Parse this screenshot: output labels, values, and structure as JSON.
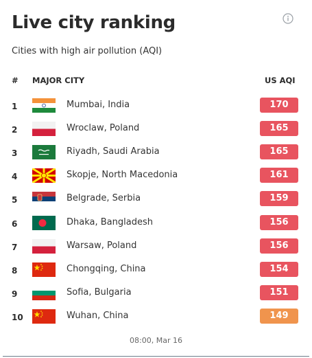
{
  "title": "Live city ranking",
  "subtitle": "Cities with high air pollution (AQI)",
  "header": {
    "rank": "#",
    "city": "MAJOR CITY",
    "aqi": "US AQI"
  },
  "rows": [
    {
      "rank": "1",
      "city": "Mumbai, India",
      "aqi": "170",
      "color": "#e8545f",
      "flag": "india-flag"
    },
    {
      "rank": "2",
      "city": "Wroclaw, Poland",
      "aqi": "165",
      "color": "#e8545f",
      "flag": "poland-flag"
    },
    {
      "rank": "3",
      "city": "Riyadh, Saudi Arabia",
      "aqi": "165",
      "color": "#e8545f",
      "flag": "saudi-arabia-flag"
    },
    {
      "rank": "4",
      "city": "Skopje, North Macedonia",
      "aqi": "161",
      "color": "#e8545f",
      "flag": "north-macedonia-flag"
    },
    {
      "rank": "5",
      "city": "Belgrade, Serbia",
      "aqi": "159",
      "color": "#e8545f",
      "flag": "serbia-flag"
    },
    {
      "rank": "6",
      "city": "Dhaka, Bangladesh",
      "aqi": "156",
      "color": "#e8545f",
      "flag": "bangladesh-flag"
    },
    {
      "rank": "7",
      "city": "Warsaw, Poland",
      "aqi": "156",
      "color": "#e8545f",
      "flag": "poland-flag"
    },
    {
      "rank": "8",
      "city": "Chongqing, China",
      "aqi": "154",
      "color": "#e8545f",
      "flag": "china-flag"
    },
    {
      "rank": "9",
      "city": "Sofia, Bulgaria",
      "aqi": "151",
      "color": "#e8545f",
      "flag": "bulgaria-flag"
    },
    {
      "rank": "10",
      "city": "Wuhan, China",
      "aqi": "149",
      "color": "#f0944d",
      "flag": "china-flag"
    }
  ],
  "timestamp": "08:00, Mar 16"
}
